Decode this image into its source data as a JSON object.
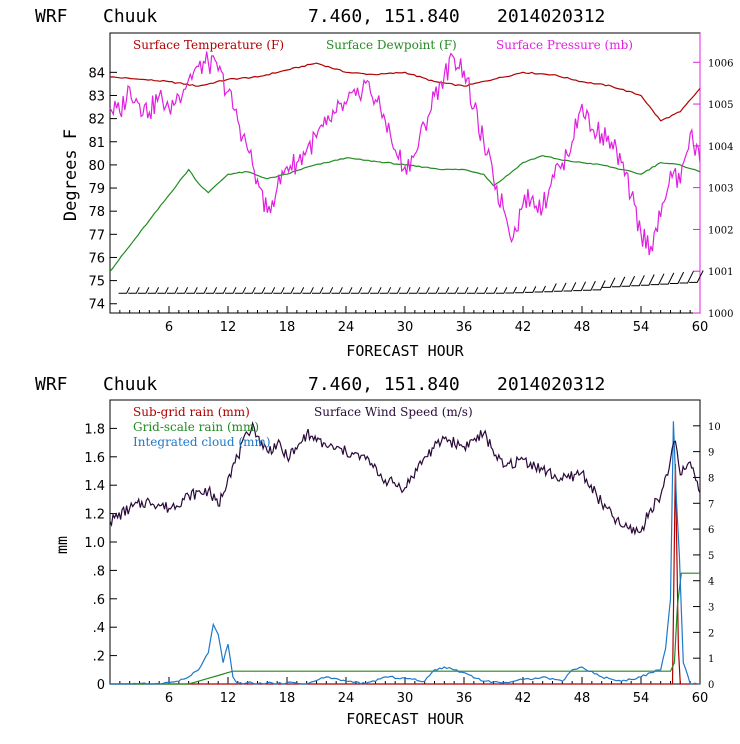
{
  "header": {
    "model": "WRF",
    "station": "Chuuk",
    "coords": "7.460, 151.840",
    "init": "2014020312"
  },
  "colors": {
    "temperature": "#b00000",
    "dewpoint": "#228b22",
    "pressure": "#e020e0",
    "wind": "#2a0a3a",
    "subgrid_rain": "#b00000",
    "grid_rain": "#228b22",
    "cloud": "#1e78c8",
    "axis": "#000000",
    "pressure_axis": "#e020e0"
  },
  "chart_data": [
    {
      "type": "line",
      "title": "",
      "xlabel": "FORECAST HOUR",
      "ylabel": "Degrees F",
      "xlim": [
        0,
        60
      ],
      "ylim": [
        73.6,
        85.7
      ],
      "y2lim": [
        1000,
        1006.7
      ],
      "grid": false,
      "legend": "top-left",
      "x_ticks": [
        "6",
        "12",
        "18",
        "24",
        "30",
        "36",
        "42",
        "48",
        "54",
        "60"
      ],
      "y_ticks": [
        "74",
        "75",
        "76",
        "77",
        "78",
        "79",
        "80",
        "81",
        "82",
        "83",
        "84"
      ],
      "y2_ticks": [
        "1000",
        "1001",
        "1002",
        "1003",
        "1004",
        "1005",
        "1006"
      ],
      "series": [
        {
          "name": "Surface Temperature (F)",
          "axis": "left",
          "x": [
            0,
            3,
            6,
            9,
            12,
            15,
            18,
            21,
            24,
            27,
            30,
            33,
            36,
            39,
            42,
            45,
            48,
            51,
            54,
            56,
            58,
            60
          ],
          "y": [
            83.8,
            83.7,
            83.6,
            83.4,
            83.7,
            83.8,
            84.1,
            84.4,
            84.0,
            83.9,
            84.0,
            83.6,
            83.4,
            83.7,
            84.0,
            83.9,
            83.6,
            83.4,
            83.0,
            81.9,
            82.3,
            83.3
          ]
        },
        {
          "name": "Surface Dewpoint (F)",
          "axis": "left",
          "x": [
            0,
            2,
            4,
            6,
            8,
            9,
            10,
            12,
            14,
            16,
            18,
            20,
            22,
            24,
            26,
            28,
            30,
            32,
            34,
            36,
            38,
            39,
            40,
            42,
            44,
            46,
            48,
            50,
            52,
            54,
            56,
            58,
            60
          ],
          "y": [
            75.4,
            76.5,
            77.6,
            78.7,
            79.8,
            79.2,
            78.8,
            79.6,
            79.7,
            79.4,
            79.6,
            79.9,
            80.1,
            80.3,
            80.2,
            80.1,
            80.0,
            79.9,
            79.8,
            79.8,
            79.6,
            79.1,
            79.4,
            80.1,
            80.4,
            80.2,
            80.1,
            80.0,
            79.8,
            79.6,
            80.1,
            80.0,
            79.7
          ]
        },
        {
          "name": "Surface Pressure (mb)",
          "axis": "right",
          "x": [
            0,
            1,
            2,
            3,
            4,
            5,
            6,
            7,
            8,
            9,
            10,
            11,
            12,
            13,
            14,
            15,
            16,
            17,
            18,
            19,
            20,
            21,
            22,
            23,
            24,
            25,
            26,
            27,
            28,
            29,
            30,
            31,
            32,
            33,
            34,
            35,
            36,
            37,
            38,
            39,
            40,
            41,
            42,
            43,
            44,
            45,
            46,
            47,
            48,
            49,
            50,
            51,
            52,
            53,
            54,
            55,
            56,
            57,
            58,
            59,
            60
          ],
          "y": [
            1004.9,
            1004.8,
            1005.4,
            1005.0,
            1004.8,
            1005.2,
            1004.9,
            1005.2,
            1005.6,
            1005.9,
            1006.0,
            1005.8,
            1005.3,
            1004.6,
            1003.9,
            1003.2,
            1002.4,
            1003.0,
            1003.5,
            1003.6,
            1003.9,
            1004.2,
            1004.5,
            1004.8,
            1005.0,
            1005.2,
            1005.5,
            1005.1,
            1004.6,
            1003.9,
            1003.5,
            1003.8,
            1004.5,
            1005.2,
            1005.7,
            1006.1,
            1005.8,
            1004.9,
            1004.1,
            1003.2,
            1002.5,
            1001.8,
            1002.6,
            1002.8,
            1002.5,
            1003.3,
            1003.6,
            1004.1,
            1005.0,
            1004.4,
            1004.3,
            1004.1,
            1003.6,
            1002.8,
            1001.9,
            1001.6,
            1002.3,
            1003.4,
            1003.1,
            1004.3,
            1003.6
          ]
        }
      ],
      "wind_barbs": {
        "level": 74.45,
        "count": 60
      }
    },
    {
      "type": "line",
      "title": "",
      "xlabel": "FORECAST HOUR",
      "ylabel": "mm",
      "xlim": [
        0,
        60
      ],
      "ylim": [
        0,
        2.0
      ],
      "y2lim": [
        0,
        11.0
      ],
      "grid": false,
      "legend": "top-left",
      "x_ticks": [
        "6",
        "12",
        "18",
        "24",
        "30",
        "36",
        "42",
        "48",
        "54",
        "60"
      ],
      "y_ticks": [
        "0",
        ".2",
        ".4",
        ".6",
        ".8",
        "1.0",
        "1.2",
        "1.4",
        "1.6",
        "1.8"
      ],
      "y2_ticks": [
        "0",
        "1",
        "2",
        "3",
        "4",
        "5",
        "6",
        "7",
        "8",
        "9",
        "10"
      ],
      "series": [
        {
          "name": "Sub-grid rain (mm)",
          "axis": "left",
          "x": [
            0,
            57.2,
            57.5,
            57.8,
            58,
            60
          ],
          "y": [
            0,
            0,
            1.55,
            0.25,
            0,
            0
          ]
        },
        {
          "name": "Grid-scale rain (mm)",
          "axis": "left",
          "x": [
            0,
            8,
            9,
            10,
            11,
            12,
            12.5,
            57,
            57.4,
            57.7,
            58.1,
            58.5,
            60
          ],
          "y": [
            0,
            0,
            0.02,
            0.04,
            0.06,
            0.08,
            0.09,
            0.09,
            0.15,
            0.55,
            0.78,
            0.78,
            0.78
          ]
        },
        {
          "name": "Integrated cloud (mm)",
          "axis": "left",
          "x": [
            0,
            5,
            7,
            8,
            9,
            10,
            10.5,
            11,
            11.5,
            12,
            12.5,
            13,
            14,
            15,
            16,
            17,
            18,
            20,
            22,
            24,
            26,
            28,
            30,
            32,
            33,
            34,
            35,
            36,
            38,
            40,
            42,
            44,
            46,
            47,
            48,
            50,
            52,
            54,
            55,
            56,
            56.5,
            57,
            57.3,
            57.6,
            57.9,
            58.3,
            59,
            60
          ],
          "y": [
            0,
            0,
            0.02,
            0.05,
            0.1,
            0.22,
            0.42,
            0.35,
            0.15,
            0.28,
            0.05,
            0,
            0.01,
            0,
            0.01,
            0,
            0.01,
            0,
            0.05,
            0.02,
            0,
            0.05,
            0.04,
            0.02,
            0.1,
            0.12,
            0.1,
            0.08,
            0.02,
            0.01,
            0.03,
            0.05,
            0.02,
            0.1,
            0.12,
            0.05,
            0.02,
            0.05,
            0.08,
            0.1,
            0.25,
            0.6,
            1.85,
            1.3,
            0.9,
            0.15,
            0,
            0
          ]
        },
        {
          "name": "Surface Wind Speed (m/s)",
          "axis": "right",
          "x": [
            0,
            2,
            4,
            6,
            8,
            10,
            11,
            12,
            13,
            14,
            14.5,
            15,
            16,
            17,
            18,
            19,
            20,
            21,
            22,
            24,
            26,
            28,
            30,
            32,
            34,
            36,
            38,
            40,
            42,
            44,
            46,
            48,
            50,
            52,
            54,
            55,
            56,
            57,
            57.5,
            58,
            59,
            60
          ],
          "y": [
            6.3,
            6.8,
            7.1,
            6.8,
            7.3,
            7.5,
            6.9,
            8.0,
            8.8,
            9.7,
            10.1,
            9.6,
            9.0,
            9.3,
            8.8,
            9.1,
            9.7,
            9.4,
            9.2,
            9.0,
            8.7,
            7.9,
            7.6,
            8.8,
            9.5,
            9.2,
            9.7,
            8.4,
            8.7,
            8.3,
            7.9,
            8.2,
            7.0,
            6.1,
            5.9,
            6.8,
            7.3,
            8.7,
            9.4,
            8.1,
            8.6,
            7.4
          ]
        }
      ]
    }
  ]
}
